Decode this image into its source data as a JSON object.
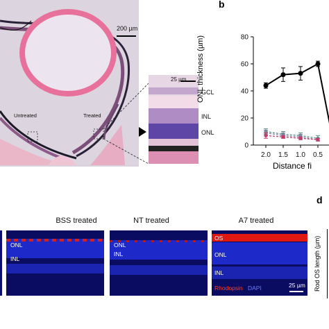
{
  "panel_a": {
    "scale_bar_label": "200 µm",
    "region_untreated": "Untreated",
    "region_treated": "Treated",
    "inset_scale_label": "25 µm",
    "layer_gcl": "GCL",
    "layer_inl": "INL",
    "layer_onl": "ONL"
  },
  "panel_b": {
    "letter": "b",
    "ylabel": "ONL thickness (µm)",
    "xlabel": "Distance fi"
  },
  "chart_data": {
    "type": "line",
    "x": [
      "2.0",
      "1.5",
      "1.0",
      "0.5"
    ],
    "ylim": [
      0,
      80
    ],
    "yticks": [
      0,
      20,
      40,
      60,
      80
    ],
    "ylabel": "ONL thickness (µm)",
    "xlabel": "Distance fi",
    "series": [
      {
        "values": [
          44,
          52,
          53,
          60
        ],
        "errors": [
          2,
          5,
          5,
          2
        ],
        "color": "#000000"
      },
      {
        "values": [
          10,
          8,
          7,
          5
        ],
        "errors": [
          2,
          2,
          2,
          2
        ],
        "color": "#5c8f86"
      },
      {
        "values": [
          9,
          7,
          6,
          4
        ],
        "errors": [
          2,
          2,
          2,
          1
        ],
        "color": "#8a7fa8"
      },
      {
        "values": [
          7,
          6,
          5,
          4
        ],
        "errors": [
          2,
          1,
          1,
          1
        ],
        "color": "#c23b6a"
      }
    ]
  },
  "panel_c": {
    "titles": [
      "BSS treated",
      "NT treated",
      "A7 treated"
    ],
    "onl": "ONL",
    "inl": "INL",
    "os": "OS",
    "legend_rhodopsin": "Rhodopsin",
    "legend_dapi": "DAPI",
    "scale_label": "25 µm",
    "colors": {
      "rhodopsin": "#ff2a1a",
      "dapi": "#3a4bff"
    }
  },
  "panel_d": {
    "letter": "d",
    "ylabel": "Rod OS length (µm)"
  }
}
